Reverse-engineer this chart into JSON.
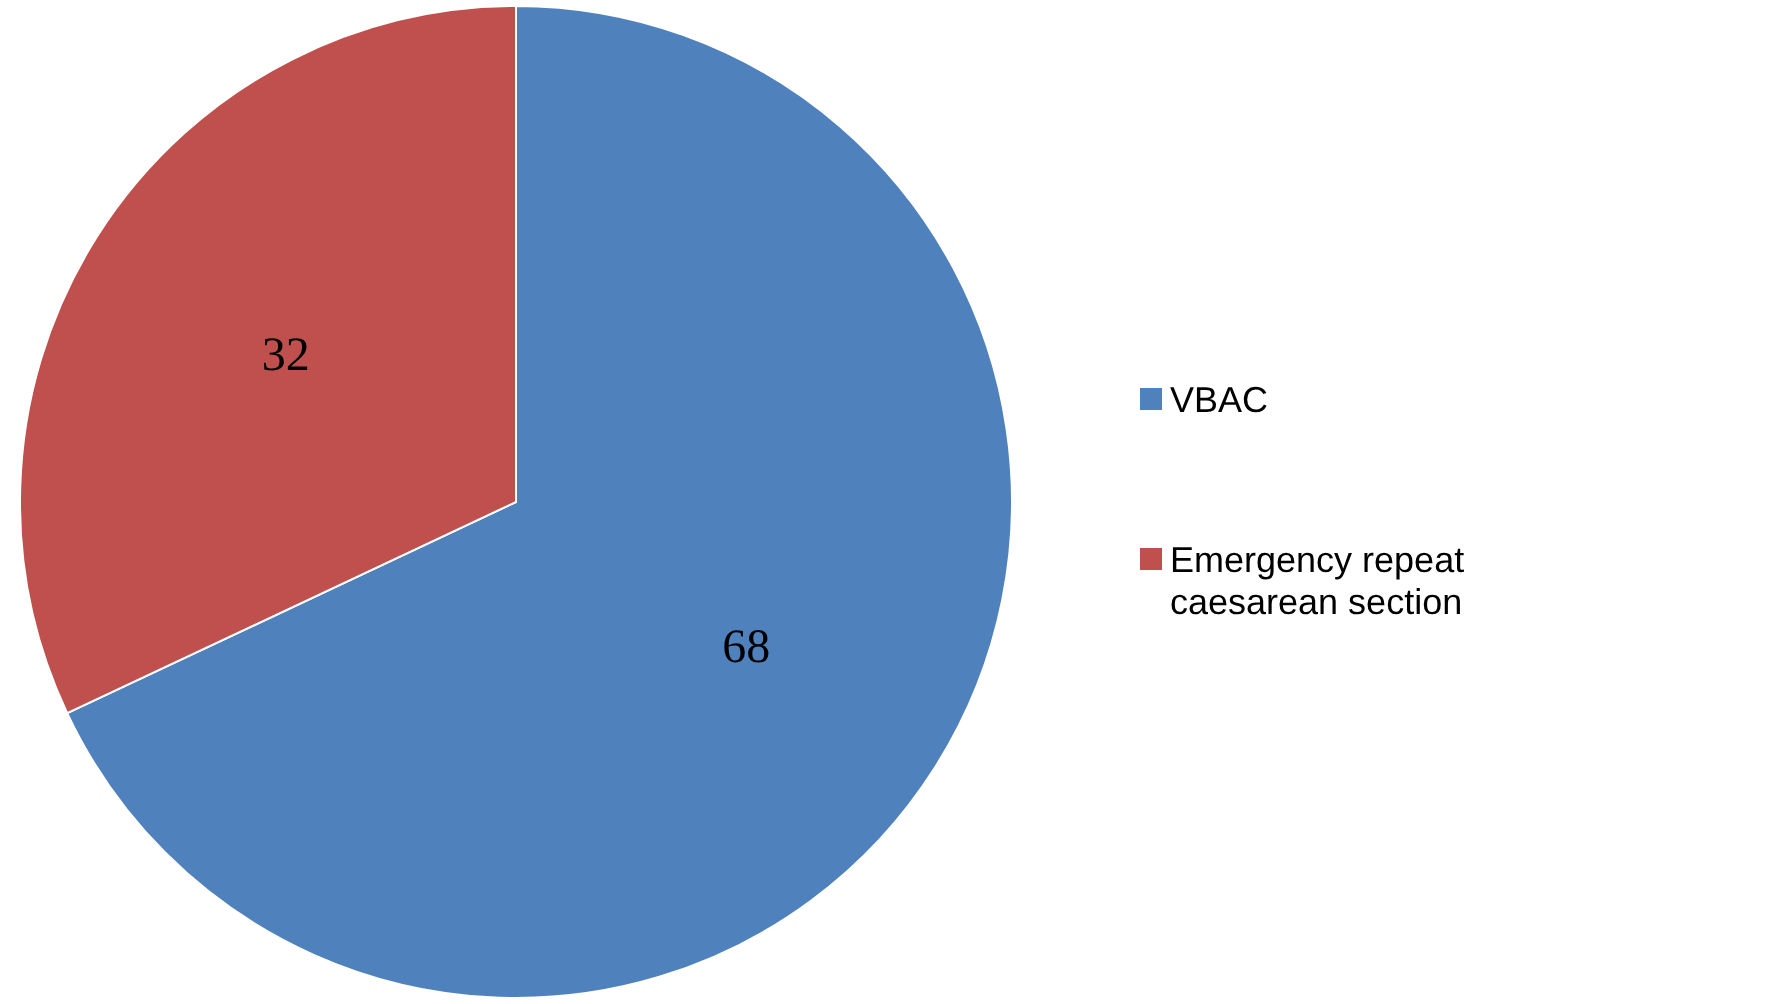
{
  "chart_data": {
    "type": "pie",
    "categories": [
      "VBAC",
      "Emergency repeat caesarean section"
    ],
    "values": [
      68,
      32
    ],
    "colors": [
      "#4f81bd",
      "#c0504d"
    ],
    "data_labels": true,
    "legend": "right"
  }
}
